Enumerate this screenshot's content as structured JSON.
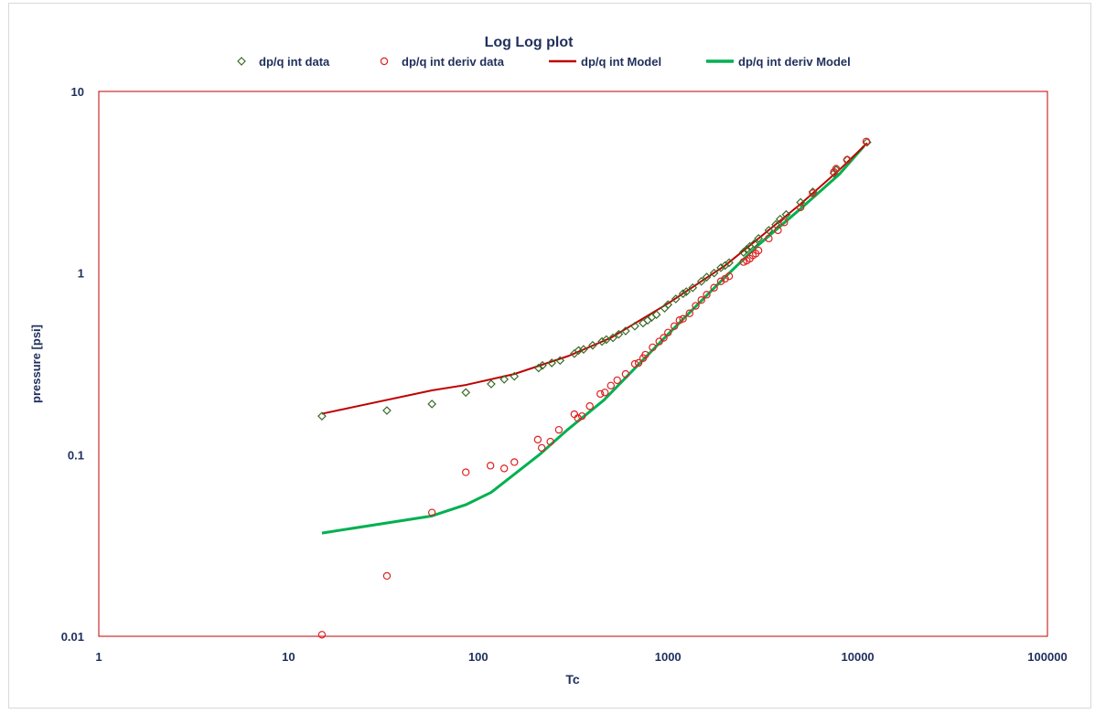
{
  "chart_data": {
    "type": "scatter",
    "title": "Log Log plot",
    "xlabel": "Tc",
    "ylabel": "pressure [psi]",
    "xscale": "log",
    "yscale": "log",
    "xlim": [
      1,
      100000
    ],
    "ylim": [
      0.01,
      10
    ],
    "xticks": [
      1,
      10,
      100,
      1000,
      10000,
      100000
    ],
    "xtick_labels": [
      "1",
      "10",
      "100",
      "1000",
      "10000",
      "100000"
    ],
    "yticks": [
      0.01,
      0.1,
      1,
      10
    ],
    "ytick_labels": [
      "0.01",
      "0.1",
      "1",
      "10"
    ],
    "grid": false,
    "legend_position": "top",
    "series": [
      {
        "name": "dp/q int data",
        "kind": "marker-diamond",
        "color": "#3a6b28",
        "points": [
          [
            15,
            0.163
          ],
          [
            33,
            0.175
          ],
          [
            57,
            0.19
          ],
          [
            86,
            0.22
          ],
          [
            117,
            0.245
          ],
          [
            137,
            0.26
          ],
          [
            155,
            0.27
          ],
          [
            208,
            0.3
          ],
          [
            218,
            0.31
          ],
          [
            244,
            0.32
          ],
          [
            270,
            0.33
          ],
          [
            321,
            0.36
          ],
          [
            338,
            0.375
          ],
          [
            359,
            0.38
          ],
          [
            401,
            0.4
          ],
          [
            449,
            0.42
          ],
          [
            473,
            0.43
          ],
          [
            513,
            0.44
          ],
          [
            550,
            0.46
          ],
          [
            598,
            0.48
          ],
          [
            669,
            0.51
          ],
          [
            739,
            0.53
          ],
          [
            782,
            0.55
          ],
          [
            820,
            0.57
          ],
          [
            870,
            0.59
          ],
          [
            960,
            0.64
          ],
          [
            1000,
            0.67
          ],
          [
            1100,
            0.72
          ],
          [
            1200,
            0.77
          ],
          [
            1250,
            0.79
          ],
          [
            1350,
            0.83
          ],
          [
            1500,
            0.9
          ],
          [
            1600,
            0.95
          ],
          [
            1750,
            1.0
          ],
          [
            1900,
            1.07
          ],
          [
            2000,
            1.1
          ],
          [
            2100,
            1.14
          ],
          [
            2500,
            1.3
          ],
          [
            2600,
            1.35
          ],
          [
            2700,
            1.4
          ],
          [
            2850,
            1.45
          ],
          [
            3000,
            1.55
          ],
          [
            3400,
            1.72
          ],
          [
            3700,
            1.85
          ],
          [
            3900,
            1.98
          ],
          [
            4200,
            2.1
          ],
          [
            5000,
            2.45
          ],
          [
            5800,
            2.8
          ],
          [
            7500,
            3.55
          ],
          [
            7700,
            3.7
          ],
          [
            8800,
            4.2
          ],
          [
            11200,
            5.25
          ]
        ]
      },
      {
        "name": "dp/q int deriv data",
        "kind": "marker-circle",
        "color": "#e02020",
        "points": [
          [
            15,
            0.0102
          ],
          [
            33,
            0.0215
          ],
          [
            57,
            0.048
          ],
          [
            86,
            0.08
          ],
          [
            116,
            0.087
          ],
          [
            137,
            0.084
          ],
          [
            155,
            0.091
          ],
          [
            206,
            0.121
          ],
          [
            216,
            0.109
          ],
          [
            240,
            0.118
          ],
          [
            266,
            0.137
          ],
          [
            321,
            0.167
          ],
          [
            335,
            0.159
          ],
          [
            352,
            0.163
          ],
          [
            387,
            0.185
          ],
          [
            440,
            0.216
          ],
          [
            465,
            0.22
          ],
          [
            500,
            0.24
          ],
          [
            540,
            0.257
          ],
          [
            598,
            0.278
          ],
          [
            669,
            0.316
          ],
          [
            700,
            0.32
          ],
          [
            740,
            0.34
          ],
          [
            760,
            0.355
          ],
          [
            830,
            0.39
          ],
          [
            900,
            0.42
          ],
          [
            950,
            0.44
          ],
          [
            1000,
            0.47
          ],
          [
            1080,
            0.51
          ],
          [
            1150,
            0.55
          ],
          [
            1200,
            0.56
          ],
          [
            1300,
            0.6
          ],
          [
            1400,
            0.66
          ],
          [
            1500,
            0.71
          ],
          [
            1600,
            0.76
          ],
          [
            1750,
            0.83
          ],
          [
            1900,
            0.9
          ],
          [
            2000,
            0.93
          ],
          [
            2100,
            0.96
          ],
          [
            2500,
            1.15
          ],
          [
            2600,
            1.17
          ],
          [
            2700,
            1.2
          ],
          [
            2800,
            1.25
          ],
          [
            2900,
            1.28
          ],
          [
            3000,
            1.33
          ],
          [
            3400,
            1.55
          ],
          [
            3800,
            1.72
          ],
          [
            4100,
            1.9
          ],
          [
            5000,
            2.3
          ],
          [
            5800,
            2.75
          ],
          [
            7500,
            3.6
          ],
          [
            7700,
            3.75
          ],
          [
            8800,
            4.2
          ],
          [
            11100,
            5.3
          ]
        ]
      },
      {
        "name": "dp/q int Model",
        "kind": "line",
        "color": "#c00000",
        "width": 2,
        "points": [
          [
            15,
            0.168
          ],
          [
            57,
            0.226
          ],
          [
            86,
            0.242
          ],
          [
            155,
            0.278
          ],
          [
            300,
            0.35
          ],
          [
            500,
            0.44
          ],
          [
            1000,
            0.68
          ],
          [
            2000,
            1.1
          ],
          [
            3000,
            1.55
          ],
          [
            5000,
            2.4
          ],
          [
            8000,
            3.7
          ],
          [
            11220,
            5.2
          ]
        ]
      },
      {
        "name": "dp/q int deriv Model",
        "kind": "line",
        "color": "#00b050",
        "width": 3,
        "points": [
          [
            15,
            0.037
          ],
          [
            57,
            0.046
          ],
          [
            86,
            0.053
          ],
          [
            117,
            0.062
          ],
          [
            210,
            0.1
          ],
          [
            295,
            0.137
          ],
          [
            460,
            0.2
          ],
          [
            1000,
            0.46
          ],
          [
            2000,
            0.95
          ],
          [
            3000,
            1.43
          ],
          [
            5000,
            2.26
          ],
          [
            8000,
            3.5
          ],
          [
            10800,
            5.0
          ]
        ]
      }
    ]
  }
}
